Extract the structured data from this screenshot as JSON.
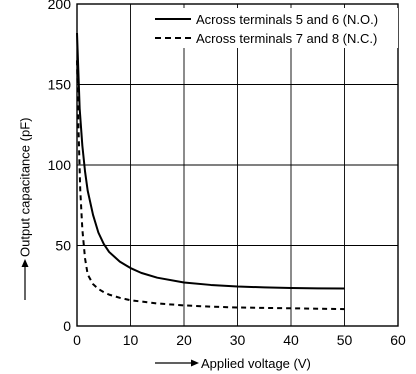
{
  "chart_data": {
    "type": "line",
    "title": "",
    "xlabel": "Applied voltage (V)",
    "ylabel": "Output capacitance (pF)",
    "xlim": [
      0,
      60
    ],
    "ylim": [
      0,
      200
    ],
    "x_ticks": [
      "0",
      "10",
      "20",
      "30",
      "40",
      "50",
      "60"
    ],
    "y_ticks": [
      "0",
      "50",
      "100",
      "150",
      "200"
    ],
    "grid": true,
    "legend_position": "top-right",
    "series": [
      {
        "name": "Across terminals 5 and 6 (N.O.)",
        "style": "solid",
        "color": "#000000",
        "x": [
          0,
          0.5,
          1,
          1.5,
          2,
          3,
          4,
          5,
          6,
          8,
          10,
          12,
          15,
          20,
          25,
          30,
          35,
          40,
          45,
          50
        ],
        "y": [
          182,
          135,
          112,
          96,
          84,
          69,
          58,
          51,
          46,
          40,
          36,
          33,
          30,
          27,
          25.5,
          24.5,
          24,
          23.6,
          23.4,
          23.3
        ]
      },
      {
        "name": "Across terminals 7 and 8 (N.C.)",
        "style": "dashed",
        "color": "#000000",
        "x": [
          0,
          0.3,
          0.6,
          1,
          1.5,
          2,
          3,
          4,
          5,
          6,
          8,
          10,
          15,
          20,
          25,
          30,
          40,
          50
        ],
        "y": [
          165,
          120,
          85,
          60,
          42,
          32,
          26,
          23,
          21,
          19.5,
          17.5,
          16,
          14,
          12.8,
          12,
          11.5,
          11,
          10.5
        ]
      }
    ]
  }
}
